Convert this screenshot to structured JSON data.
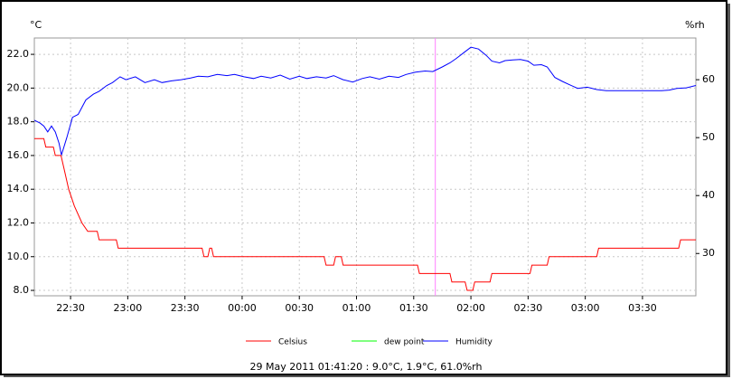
{
  "chart_data": {
    "type": "line",
    "ylabel": "°C",
    "y2label": "%rh",
    "status": "29 May 2011 01:41:20 : 9.0°C, 1.9°C, 61.0%rh",
    "grid": true,
    "cursor_x": 101.33,
    "cursor_color": "#ff80ff",
    "xlim": [
      -109,
      238
    ],
    "xticks": [
      {
        "value": -90,
        "label": "22:30"
      },
      {
        "value": -60,
        "label": "23:00"
      },
      {
        "value": -30,
        "label": "23:30"
      },
      {
        "value": 0,
        "label": "00:00"
      },
      {
        "value": 30,
        "label": "00:30"
      },
      {
        "value": 60,
        "label": "01:00"
      },
      {
        "value": 90,
        "label": "01:30"
      },
      {
        "value": 120,
        "label": "02:00"
      },
      {
        "value": 150,
        "label": "02:30"
      },
      {
        "value": 180,
        "label": "03:00"
      },
      {
        "value": 210,
        "label": "03:30"
      }
    ],
    "ylim": [
      7.68,
      22.97
    ],
    "yticks": [
      {
        "value": 8,
        "label": "8.0"
      },
      {
        "value": 10,
        "label": "10.0"
      },
      {
        "value": 12,
        "label": "12.0"
      },
      {
        "value": 14,
        "label": "14.0"
      },
      {
        "value": 16,
        "label": "16.0"
      },
      {
        "value": 18,
        "label": "18.0"
      },
      {
        "value": 20,
        "label": "20.0"
      },
      {
        "value": 22,
        "label": "22.0"
      }
    ],
    "y2lim": [
      22.7,
      67.2
    ],
    "y2ticks": [
      30,
      40,
      50,
      60
    ],
    "series": [
      {
        "name": "Celsius",
        "color": "#ff0000",
        "x": [
          -109,
          -104,
          -103,
          -99,
          -98,
          -95,
          -93,
          -91,
          -88,
          -84,
          -81,
          -76,
          -75,
          -66,
          -65,
          -21,
          -20,
          -18,
          -17,
          -16,
          -15,
          43,
          44,
          48,
          49,
          52,
          53,
          92,
          93,
          109,
          110,
          117,
          118,
          121,
          122,
          130,
          131,
          151,
          152,
          160,
          161,
          186,
          187,
          229,
          230,
          238
        ],
        "values": [
          17,
          17,
          16.5,
          16.5,
          16,
          16,
          15,
          14,
          13,
          12,
          11.5,
          11.5,
          11,
          11,
          10.5,
          10.5,
          10,
          10,
          10.5,
          10.5,
          10,
          10,
          9.5,
          9.5,
          10,
          10,
          9.5,
          9.5,
          9,
          9,
          8.5,
          8.5,
          8,
          8,
          8.5,
          8.5,
          9,
          9,
          9.5,
          9.5,
          10,
          10,
          10.5,
          10.5,
          11,
          11
        ]
      },
      {
        "name": "dew point",
        "color": "#00ff00",
        "x": [],
        "values": []
      },
      {
        "name": "Humidity",
        "color": "#0000ff",
        "axis": "y2",
        "x": [
          -109,
          -106,
          -104,
          -102,
          -100,
          -98,
          -96,
          -94.8,
          -92,
          -89,
          -86,
          -82,
          -78,
          -75,
          -71,
          -68,
          -64,
          -61,
          -56,
          -51,
          -46,
          -42,
          -37,
          -32,
          -27,
          -23,
          -18,
          -13,
          -8,
          -4,
          1,
          6,
          10,
          15,
          20,
          25,
          30,
          34,
          39,
          44,
          48,
          53,
          58,
          63,
          67,
          72,
          77,
          82,
          86,
          91,
          96,
          100,
          105,
          109,
          112,
          116,
          120,
          124,
          128,
          131,
          135,
          138,
          142,
          146,
          150,
          153,
          157,
          160,
          164,
          168,
          172,
          176,
          181,
          186,
          191,
          200,
          210,
          220,
          224,
          228,
          233,
          238
        ],
        "values": [
          53,
          52.5,
          52,
          51,
          52,
          51,
          49,
          47,
          50,
          53.5,
          54,
          56.5,
          57.5,
          58,
          59,
          59.5,
          60.5,
          60,
          60.5,
          59.5,
          60,
          59.5,
          59.8,
          60,
          60.3,
          60.6,
          60.5,
          60.9,
          60.7,
          60.9,
          60.5,
          60.2,
          60.6,
          60.3,
          60.8,
          60.1,
          60.6,
          60.2,
          60.5,
          60.3,
          60.7,
          60,
          59.6,
          60.2,
          60.5,
          60.1,
          60.6,
          60.4,
          60.9,
          61.3,
          61.5,
          61.4,
          62.2,
          62.9,
          63.6,
          64.6,
          65.6,
          65.3,
          64.2,
          63.2,
          62.9,
          63.3,
          63.4,
          63.5,
          63.2,
          62.5,
          62.6,
          62.2,
          60.4,
          59.7,
          59.1,
          58.5,
          58.7,
          58.3,
          58.1,
          58.1,
          58.1,
          58.1,
          58.2,
          58.5,
          58.6,
          59
        ]
      }
    ]
  }
}
